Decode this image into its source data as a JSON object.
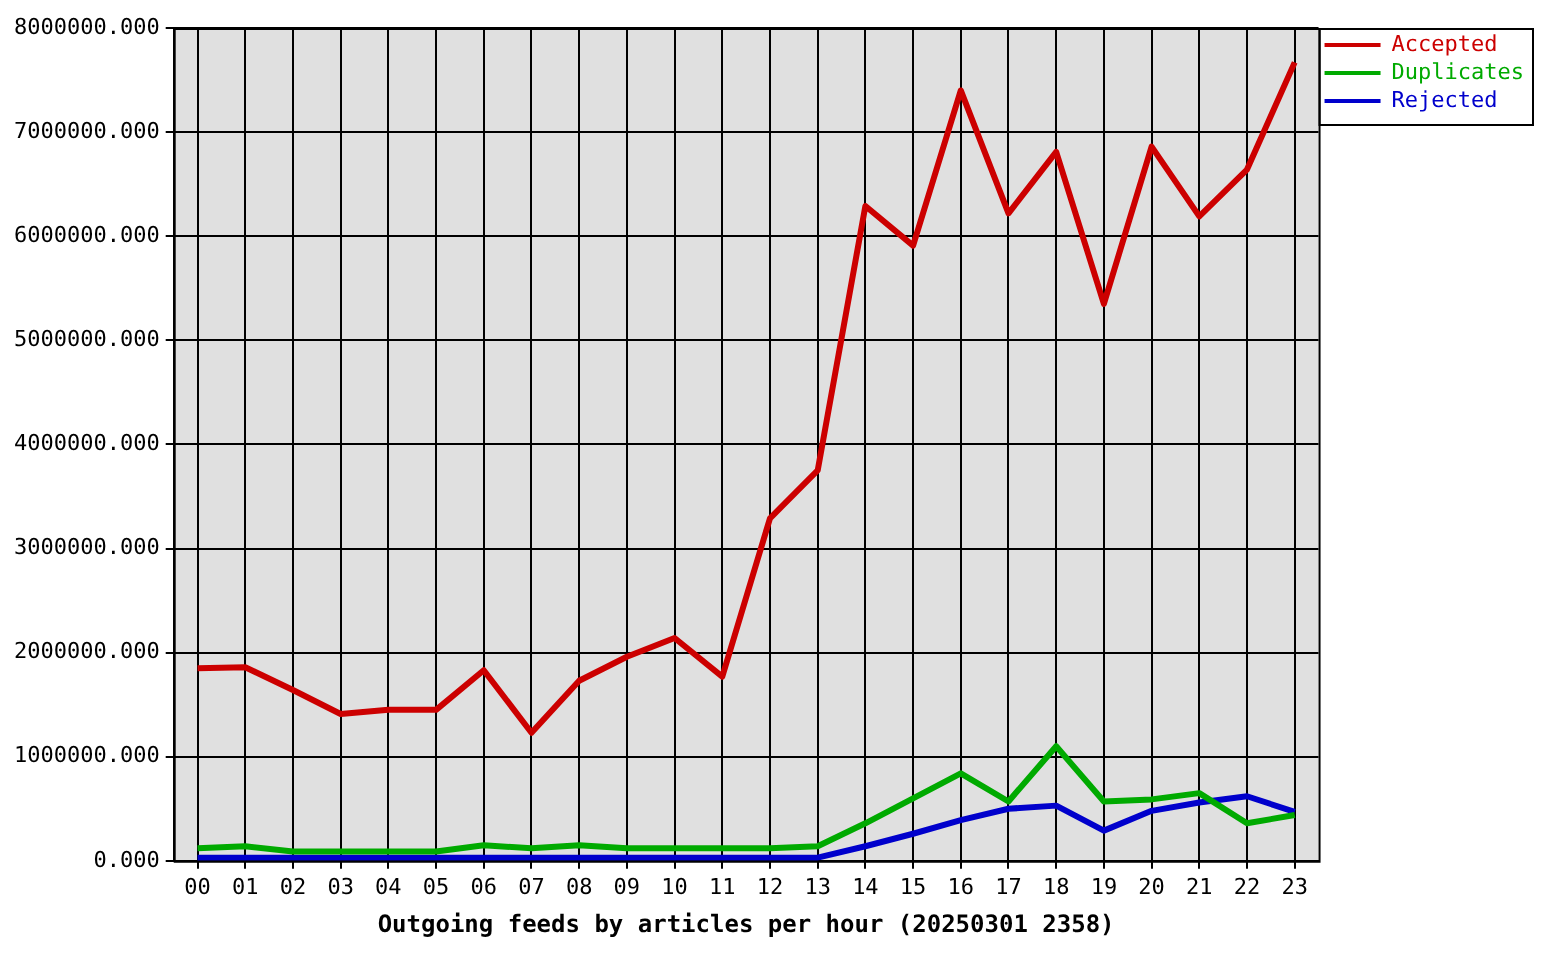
{
  "chart_data": {
    "type": "line",
    "xlabel": "Outgoing feeds by articles per hour (20250301 2358)",
    "categories": [
      "00",
      "01",
      "02",
      "03",
      "04",
      "05",
      "06",
      "07",
      "08",
      "09",
      "10",
      "11",
      "12",
      "13",
      "14",
      "15",
      "16",
      "17",
      "18",
      "19",
      "20",
      "21",
      "22",
      "23"
    ],
    "series": [
      {
        "name": "Accepted",
        "color": "#cc0000",
        "values": [
          1850000,
          1860000,
          1640000,
          1410000,
          1450000,
          1450000,
          1830000,
          1230000,
          1730000,
          1960000,
          2140000,
          1770000,
          3290000,
          3750000,
          6290000,
          5910000,
          7400000,
          6220000,
          6810000,
          5350000,
          6860000,
          6190000,
          6640000,
          7670000
        ]
      },
      {
        "name": "Duplicates",
        "color": "#00aa00",
        "values": [
          120000,
          140000,
          90000,
          90000,
          90000,
          90000,
          150000,
          120000,
          150000,
          120000,
          120000,
          120000,
          120000,
          140000,
          360000,
          600000,
          840000,
          570000,
          1100000,
          570000,
          590000,
          650000,
          360000,
          440000
        ]
      },
      {
        "name": "Rejected",
        "color": "#0000cc",
        "values": [
          30000,
          30000,
          30000,
          30000,
          30000,
          30000,
          30000,
          30000,
          30000,
          30000,
          30000,
          30000,
          30000,
          30000,
          140000,
          260000,
          390000,
          500000,
          530000,
          290000,
          480000,
          560000,
          620000,
          470000
        ]
      }
    ],
    "ylim": [
      0,
      8000000
    ],
    "yticks": [
      {
        "value": 0,
        "label": "0.000"
      },
      {
        "value": 1000000,
        "label": "1000000.000"
      },
      {
        "value": 2000000,
        "label": "2000000.000"
      },
      {
        "value": 3000000,
        "label": "3000000.000"
      },
      {
        "value": 4000000,
        "label": "4000000.000"
      },
      {
        "value": 5000000,
        "label": "5000000.000"
      },
      {
        "value": 6000000,
        "label": "6000000.000"
      },
      {
        "value": 7000000,
        "label": "7000000.000"
      },
      {
        "value": 8000000,
        "label": "8000000.000"
      }
    ],
    "grid": true,
    "legend": "top right",
    "marker": "none",
    "line_style": "solid"
  }
}
